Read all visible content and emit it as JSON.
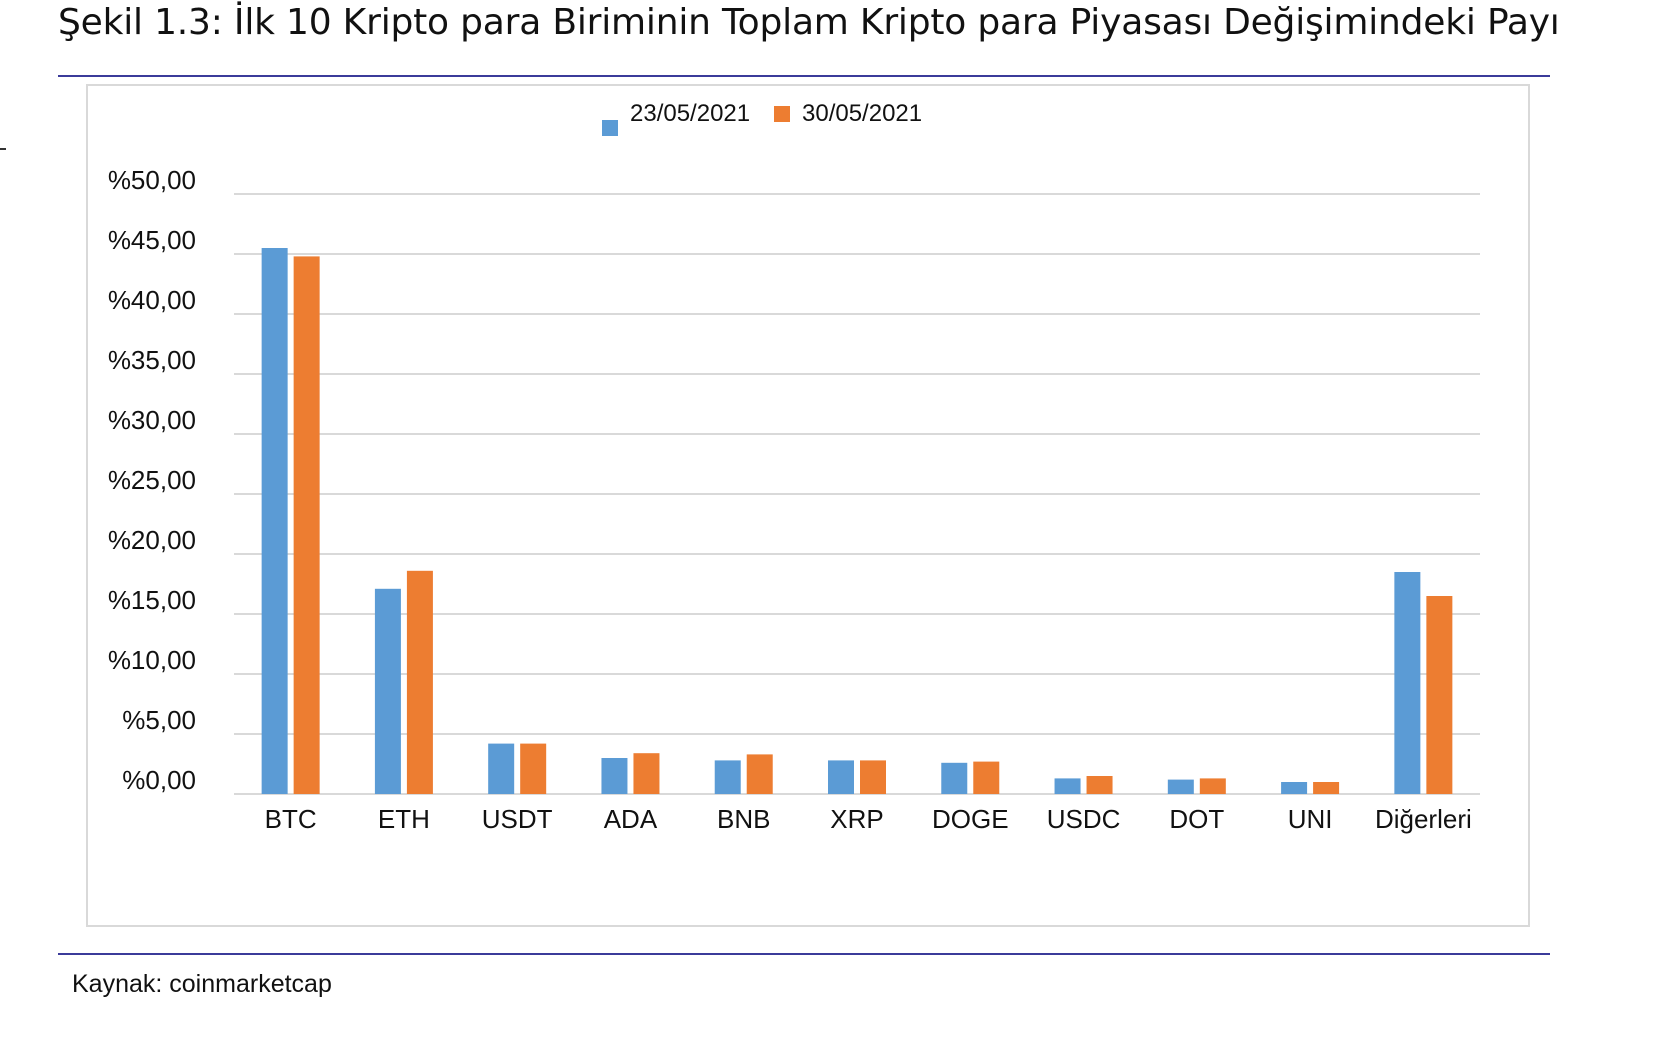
{
  "figure": {
    "title": "Şekil 1.3: İlk 10 Kripto para Biriminin Toplam Kripto para Piyasası Değişimindeki Payı",
    "source": "Kaynak: coinmarketcap"
  },
  "colors": {
    "series_1": "#5b9bd5",
    "series_2": "#ed7d31",
    "grid": "#d9d9d9",
    "rule": "#3b3b9a"
  },
  "chart_data": {
    "type": "bar",
    "categories": [
      "BTC",
      "ETH",
      "USDT",
      "ADA",
      "BNB",
      "XRP",
      "DOGE",
      "USDC",
      "DOT",
      "UNI",
      "Diğerleri"
    ],
    "series": [
      {
        "name": "23/05/2021",
        "values": [
          45.5,
          17.1,
          4.2,
          3.0,
          2.8,
          2.8,
          2.6,
          1.3,
          1.2,
          1.0,
          18.5
        ]
      },
      {
        "name": "30/05/2021",
        "values": [
          44.8,
          18.6,
          4.2,
          3.4,
          3.3,
          2.8,
          2.7,
          1.5,
          1.3,
          1.0,
          16.5
        ]
      }
    ],
    "y_ticks": [
      "%0,00",
      "%5,00",
      "%10,00",
      "%15,00",
      "%20,00",
      "%25,00",
      "%30,00",
      "%35,00",
      "%40,00",
      "%45,00",
      "%50,00"
    ],
    "ylim": [
      0,
      50
    ],
    "grid": true,
    "legend": "top-center",
    "title": "",
    "xlabel": "",
    "ylabel": ""
  }
}
